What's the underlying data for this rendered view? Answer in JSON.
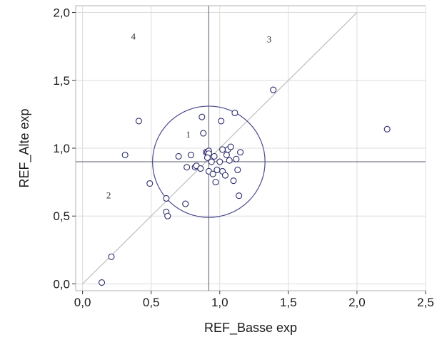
{
  "chart_data": {
    "type": "scatter",
    "xlabel": "REF_Basse exp",
    "ylabel": "REF_Alte exp",
    "xlim": [
      -0.05,
      2.5
    ],
    "ylim": [
      -0.05,
      2.05
    ],
    "x_ticks": [
      "0,0",
      "0,5",
      "1,0",
      "1,5",
      "2,0",
      "2,5"
    ],
    "x_tick_values": [
      0.0,
      0.5,
      1.0,
      1.5,
      2.0,
      2.5
    ],
    "y_ticks": [
      "0,0",
      "0,5",
      "1,0",
      "1,5",
      "2,0"
    ],
    "y_tick_values": [
      0.0,
      0.5,
      1.0,
      1.5,
      2.0
    ],
    "grid": true,
    "reference_lines": {
      "vertical_x": 0.92,
      "horizontal_y": 0.9,
      "diagonal": [
        [
          0.0,
          0.0
        ],
        [
          2.0,
          2.0
        ]
      ]
    },
    "circle": {
      "cx": 0.92,
      "cy": 0.9,
      "radius": 0.41
    },
    "region_labels": [
      {
        "text": "1",
        "x": 0.77,
        "y": 1.08
      },
      {
        "text": "2",
        "x": 0.19,
        "y": 0.63
      },
      {
        "text": "3",
        "x": 1.36,
        "y": 1.78
      },
      {
        "text": "4",
        "x": 0.37,
        "y": 1.8
      }
    ],
    "points": [
      [
        0.14,
        0.01
      ],
      [
        0.21,
        0.2
      ],
      [
        0.31,
        0.95
      ],
      [
        0.41,
        1.2
      ],
      [
        0.49,
        0.74
      ],
      [
        0.61,
        0.63
      ],
      [
        0.61,
        0.53
      ],
      [
        0.62,
        0.5
      ],
      [
        0.7,
        0.94
      ],
      [
        0.75,
        0.59
      ],
      [
        0.76,
        0.86
      ],
      [
        0.79,
        0.95
      ],
      [
        0.82,
        0.86
      ],
      [
        0.83,
        0.87
      ],
      [
        0.86,
        0.85
      ],
      [
        0.87,
        1.23
      ],
      [
        0.88,
        1.11
      ],
      [
        0.9,
        0.97
      ],
      [
        0.91,
        0.97
      ],
      [
        0.92,
        0.98
      ],
      [
        0.92,
        0.96
      ],
      [
        0.91,
        0.93
      ],
      [
        0.92,
        0.83
      ],
      [
        0.94,
        0.9
      ],
      [
        0.95,
        0.81
      ],
      [
        0.96,
        0.94
      ],
      [
        0.97,
        0.75
      ],
      [
        0.98,
        0.84
      ],
      [
        1.0,
        0.9
      ],
      [
        1.01,
        1.2
      ],
      [
        1.02,
        0.99
      ],
      [
        1.02,
        0.83
      ],
      [
        1.04,
        0.8
      ],
      [
        1.05,
        0.95
      ],
      [
        1.06,
        0.99
      ],
      [
        1.07,
        0.91
      ],
      [
        1.08,
        1.01
      ],
      [
        1.1,
        0.76
      ],
      [
        1.11,
        1.26
      ],
      [
        1.12,
        0.92
      ],
      [
        1.13,
        0.84
      ],
      [
        1.14,
        0.65
      ],
      [
        1.15,
        0.97
      ],
      [
        1.39,
        1.43
      ],
      [
        2.22,
        1.14
      ]
    ]
  }
}
